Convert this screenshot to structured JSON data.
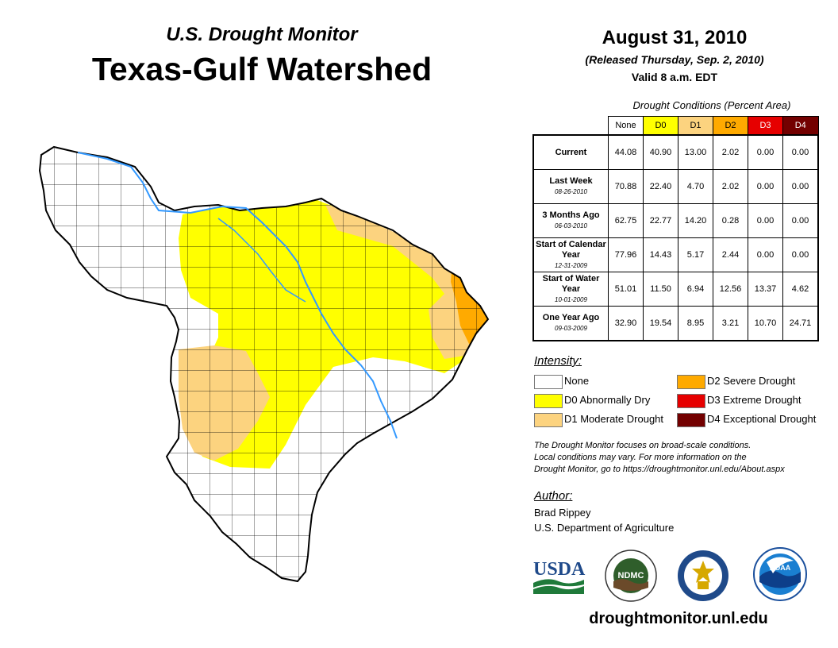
{
  "header": {
    "supertitle": "U.S. Drought Monitor",
    "title": "Texas-Gulf Watershed"
  },
  "date_block": {
    "date": "August 31, 2010",
    "released": "(Released Thursday, Sep. 2, 2010)",
    "valid": "Valid 8 a.m. EDT"
  },
  "conditions": {
    "caption": "Drought Conditions (Percent Area)",
    "columns": [
      {
        "label": "None",
        "color": "#ffffff",
        "text_color": "#000000"
      },
      {
        "label": "D0",
        "color": "#ffff00",
        "text_color": "#000000"
      },
      {
        "label": "D1",
        "color": "#fcd37f",
        "text_color": "#000000"
      },
      {
        "label": "D2",
        "color": "#ffaa00",
        "text_color": "#000000"
      },
      {
        "label": "D3",
        "color": "#e60000",
        "text_color": "#ffffff"
      },
      {
        "label": "D4",
        "color": "#730000",
        "text_color": "#ffffff"
      }
    ],
    "rows": [
      {
        "label": "Current",
        "date": "",
        "values": [
          "44.08",
          "40.90",
          "13.00",
          "2.02",
          "0.00",
          "0.00"
        ]
      },
      {
        "label": "Last Week",
        "date": "08-26-2010",
        "values": [
          "70.88",
          "22.40",
          "4.70",
          "2.02",
          "0.00",
          "0.00"
        ]
      },
      {
        "label": "3 Months Ago",
        "date": "06-03-2010",
        "values": [
          "62.75",
          "22.77",
          "14.20",
          "0.28",
          "0.00",
          "0.00"
        ]
      },
      {
        "label": "Start of Calendar Year",
        "date": "12-31-2009",
        "values": [
          "77.96",
          "14.43",
          "5.17",
          "2.44",
          "0.00",
          "0.00"
        ]
      },
      {
        "label": "Start of Water Year",
        "date": "10-01-2009",
        "values": [
          "51.01",
          "11.50",
          "6.94",
          "12.56",
          "13.37",
          "4.62"
        ]
      },
      {
        "label": "One Year Ago",
        "date": "09-03-2009",
        "values": [
          "32.90",
          "19.54",
          "8.95",
          "3.21",
          "10.70",
          "24.71"
        ]
      }
    ]
  },
  "legend": {
    "heading": "Intensity:",
    "items": [
      {
        "label": "None",
        "color": "#ffffff"
      },
      {
        "label": "D0 Abnormally Dry",
        "color": "#ffff00"
      },
      {
        "label": "D1 Moderate Drought",
        "color": "#fcd37f"
      },
      {
        "label": "D2 Severe Drought",
        "color": "#ffaa00"
      },
      {
        "label": "D3 Extreme Drought",
        "color": "#e60000"
      },
      {
        "label": "D4 Exceptional Drought",
        "color": "#730000"
      }
    ]
  },
  "note": {
    "line1": "The Drought Monitor focuses on broad-scale conditions.",
    "line2": "Local conditions may vary. For more information on the",
    "line3": "Drought Monitor, go to https://droughtmonitor.unl.edu/About.aspx"
  },
  "author": {
    "heading": "Author:",
    "name": "Brad Rippey",
    "org": "U.S. Department of Agriculture"
  },
  "logos": {
    "usda": "USDA",
    "ndmc": "NDMC",
    "noaa": "NOAA"
  },
  "footer_url": "droughtmonitor.unl.edu",
  "map_colors": {
    "none": "#ffffff",
    "d0": "#ffff00",
    "d1": "#fcd37f",
    "d2": "#ffaa00",
    "river": "#3399ff",
    "border": "#000000"
  }
}
